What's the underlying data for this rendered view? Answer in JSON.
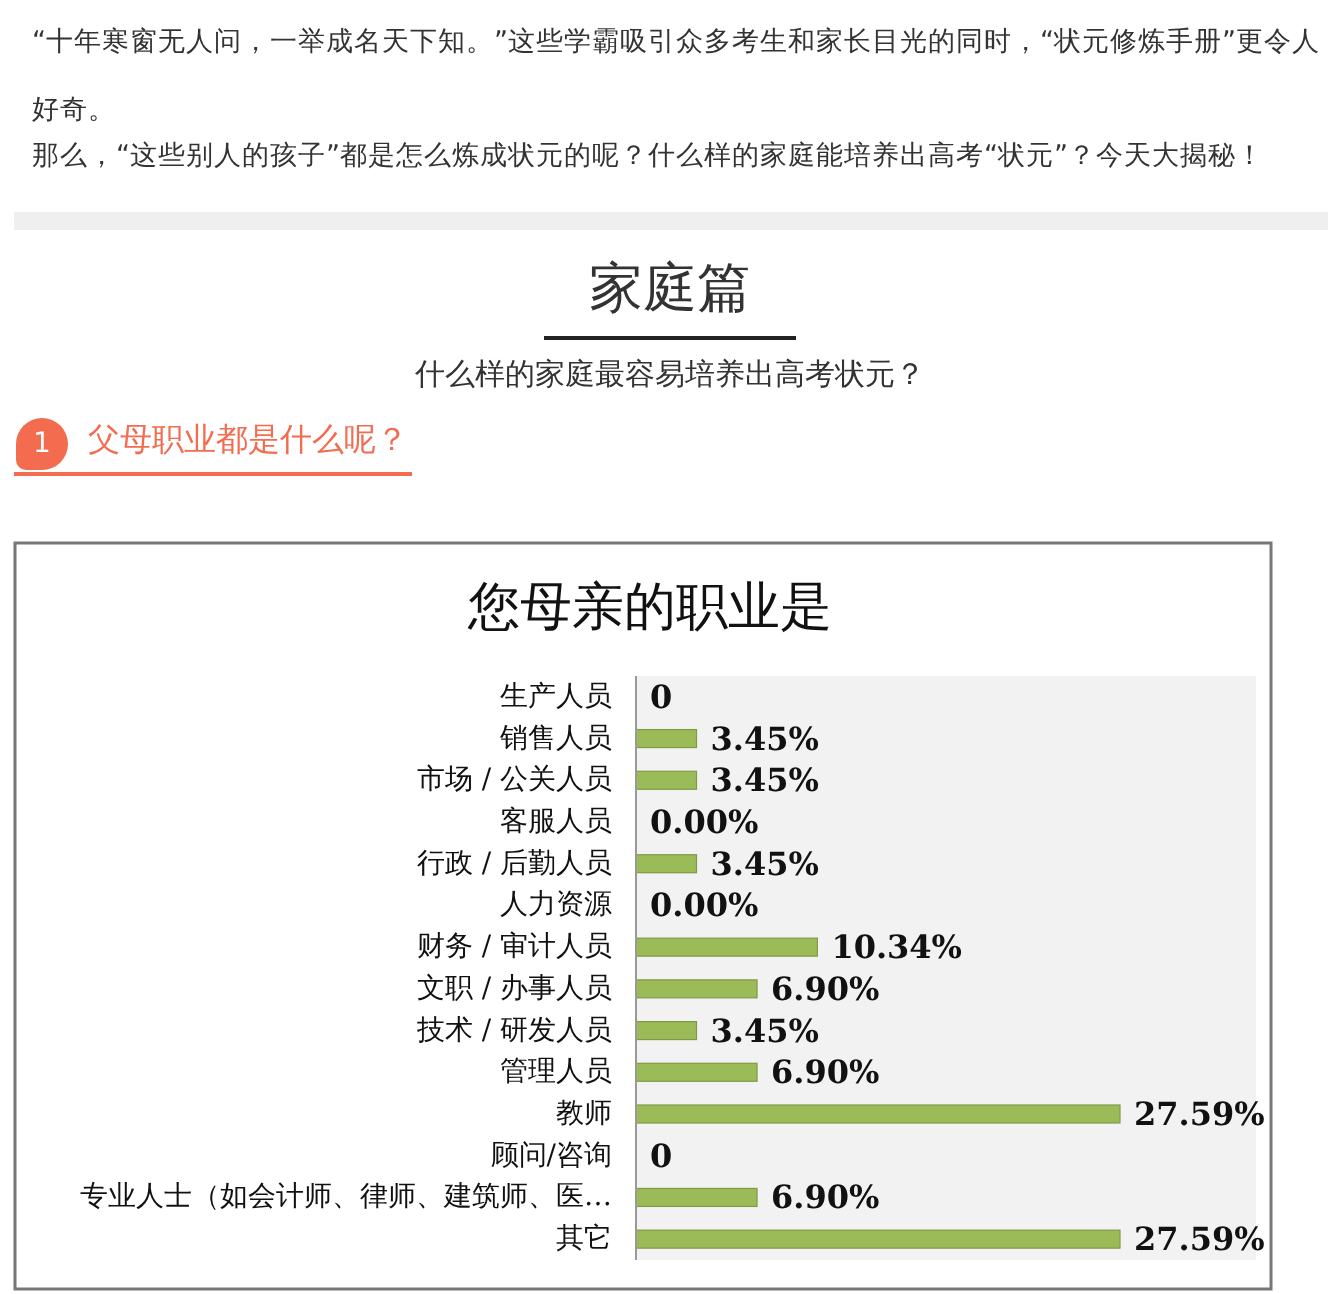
{
  "chart_data": {
    "type": "bar",
    "orientation": "horizontal",
    "title": "您母亲的职业是",
    "categories": [
      "生产人员",
      "销售人员",
      "市场 / 公关人员",
      "客服人员",
      "行政 / 后勤人员",
      "人力资源",
      "财务 / 审计人员",
      "文职 / 办事人员",
      "技术 / 研发人员",
      "管理人员",
      "教师",
      "顾问/咨询",
      "专业人士（如会计师、律师、建筑师、医…",
      "其它"
    ],
    "values": [
      0,
      3.45,
      3.45,
      0,
      3.45,
      0,
      10.34,
      6.9,
      3.45,
      6.9,
      27.59,
      0,
      6.9,
      27.59
    ],
    "value_labels": [
      "0",
      "3.45%",
      "3.45%",
      "0.00%",
      "3.45%",
      "0.00%",
      "10.34%",
      "6.90%",
      "3.45%",
      "6.90%",
      "27.59%",
      "0",
      "6.90%",
      "27.59%"
    ],
    "color": "#9bbb59",
    "annotations": [
      "“十年寒窗无人问，一举成名天下知。”这些学霸吸引众多考生和家长目光的同时，“状元修炼手册”更令人好奇。",
      "那么，“这些别人的孩子”都是怎么炼成状元的呢？什么样的家庭能培养出高考“状元”？今天大揭秘！",
      "家庭篇",
      "什么样的家庭最容易培养出高考状元？",
      "1",
      "父母职业都是什么呢？"
    ]
  }
}
